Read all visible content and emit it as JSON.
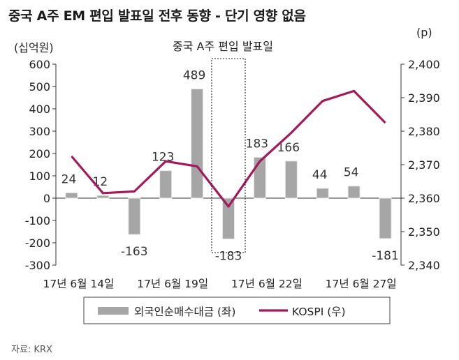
{
  "title": "중국 A주 EM 편입 발표일 전후 동향 - 단기 영향 없음",
  "source": "자료: KRX",
  "chart_data": {
    "type": "bar+line",
    "left_unit": "(십억원)",
    "right_unit": "(p)",
    "annotation": "중국 A주 편입 발표일",
    "highlight_index": 5,
    "left_ylim": [
      -300,
      600
    ],
    "left_ticks": [
      -300,
      -200,
      -100,
      0,
      100,
      200,
      300,
      400,
      500,
      600
    ],
    "right_ylim": [
      2340,
      2400
    ],
    "right_ticks": [
      "2,340",
      "2,350",
      "2,360",
      "2,370",
      "2,380",
      "2,390",
      "2,400"
    ],
    "x_labels": [
      "17년 6월 14일",
      "17년 6월 19일",
      "17년 6월 22일",
      "17년 6월 27일"
    ],
    "series": [
      {
        "name": "외국인순매수대금 (좌)",
        "type": "bar",
        "axis": "left",
        "color": "#a6a6a6",
        "values": [
          24,
          12,
          -163,
          123,
          489,
          -183,
          183,
          166,
          44,
          54,
          -181
        ],
        "labels": [
          "24",
          "12",
          "-163",
          "123",
          "489",
          "-183",
          "183",
          "166",
          "44",
          "54",
          "-181"
        ]
      },
      {
        "name": "KOSPI (우)",
        "type": "line",
        "axis": "right",
        "color": "#a3195b",
        "values": [
          2372.5,
          2361.5,
          2362,
          2371,
          2369.5,
          2357.5,
          2371,
          2379.5,
          2389,
          2392,
          2382.5
        ]
      }
    ]
  }
}
